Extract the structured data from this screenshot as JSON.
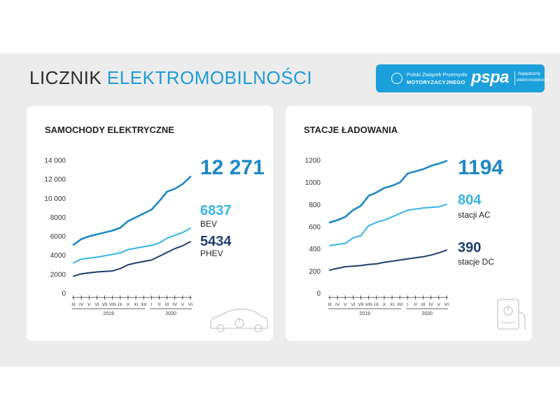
{
  "header": {
    "title_part1": "LICZNIK",
    "title_part2": "ELEKTROMOBILNOŚCI"
  },
  "logo": {
    "pzpm_line1": "Polski Związek Przemysłu",
    "pzpm_line2": "MOTORYZACYJNEGO",
    "pspa": "pspa",
    "tag_line1": "Napędzamy",
    "tag_line2": "elektromobilność!"
  },
  "colors": {
    "accent": "#1e9bd7",
    "total_line": "#1e88c6",
    "light_line": "#35b4e6",
    "dark_line": "#1e3f6f",
    "background_band": "#ececec"
  },
  "icons": {
    "card1": "car-charging-icon",
    "card2": "charging-station-icon"
  },
  "chart_data": [
    {
      "type": "line",
      "title": "SAMOCHODY ELEKTRYCZNE",
      "ylim": [
        0,
        14000
      ],
      "yticks": [
        "0",
        "2000",
        "4000",
        "6000",
        "8000",
        "10 000",
        "12 000",
        "14 000"
      ],
      "x": [
        "III",
        "IV",
        "V",
        "VI",
        "VII",
        "VIII",
        "IX",
        "X",
        "XI",
        "XII",
        "I",
        "II",
        "III",
        "IV",
        "V",
        "VI"
      ],
      "x_groups": [
        {
          "label": "2019",
          "from": 0,
          "to": 9
        },
        {
          "label": "2020",
          "from": 10,
          "to": 15
        }
      ],
      "grid": false,
      "series": [
        {
          "name": "",
          "role": "total",
          "values": [
            5100,
            5700,
            6000,
            6200,
            6400,
            6600,
            6900,
            7600,
            8000,
            8400,
            8800,
            9700,
            10700,
            11000,
            11500,
            12271
          ]
        },
        {
          "name": "BEV",
          "role": "light",
          "values": [
            3200,
            3600,
            3700,
            3800,
            3950,
            4100,
            4250,
            4600,
            4750,
            4900,
            5050,
            5300,
            5800,
            6100,
            6400,
            6837
          ]
        },
        {
          "name": "PHEV",
          "role": "dark",
          "values": [
            1800,
            2050,
            2150,
            2250,
            2300,
            2350,
            2600,
            3000,
            3200,
            3350,
            3500,
            3900,
            4300,
            4700,
            5000,
            5434
          ]
        }
      ],
      "labels": {
        "total_value": "12 271",
        "bev_value": "6837",
        "bev_label": "BEV",
        "phev_value": "5434",
        "phev_label": "PHEV"
      }
    },
    {
      "type": "line",
      "title": "STACJE ŁADOWANIA",
      "ylim": [
        0,
        1200
      ],
      "yticks": [
        "0",
        "200",
        "400",
        "600",
        "800",
        "1000",
        "1200"
      ],
      "x": [
        "III",
        "IV",
        "V",
        "VI",
        "VII",
        "VIII",
        "IX",
        "X",
        "XI",
        "XII",
        "I",
        "II",
        "III",
        "IV",
        "V",
        "VI"
      ],
      "x_groups": [
        {
          "label": "2019",
          "from": 0,
          "to": 9
        },
        {
          "label": "2020",
          "from": 10,
          "to": 15
        }
      ],
      "grid": false,
      "series": [
        {
          "name": "",
          "role": "total",
          "values": [
            640,
            660,
            690,
            750,
            790,
            880,
            910,
            950,
            970,
            1000,
            1080,
            1100,
            1120,
            1150,
            1170,
            1194
          ]
        },
        {
          "name": "stacji AC",
          "role": "light",
          "values": [
            430,
            440,
            450,
            500,
            520,
            610,
            640,
            660,
            690,
            720,
            750,
            760,
            770,
            775,
            780,
            804
          ]
        },
        {
          "name": "stacje DC",
          "role": "dark",
          "values": [
            210,
            225,
            240,
            245,
            250,
            260,
            265,
            280,
            290,
            300,
            310,
            320,
            330,
            345,
            365,
            390
          ]
        }
      ],
      "labels": {
        "total_value": "1194",
        "ac_value": "804",
        "ac_label": "stacji AC",
        "dc_value": "390",
        "dc_label": "stacje DC"
      }
    }
  ]
}
